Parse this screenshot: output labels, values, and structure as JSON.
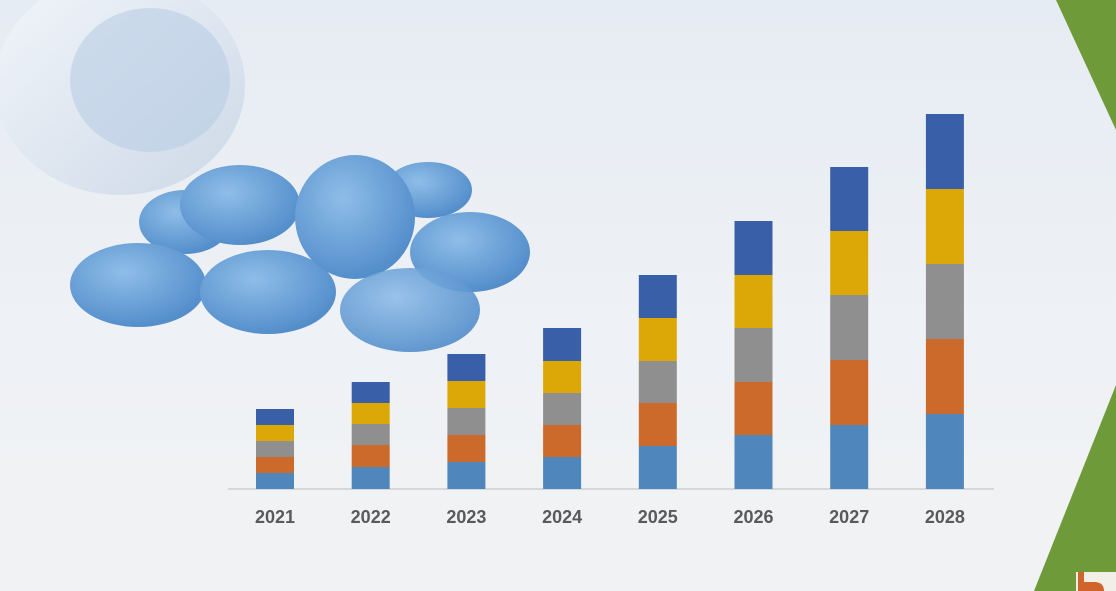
{
  "chart_data": {
    "type": "bar",
    "stacked": true,
    "categories": [
      "2021",
      "2022",
      "2023",
      "2024",
      "2025",
      "2026",
      "2027",
      "2028"
    ],
    "series": [
      {
        "color": "#4f87bd",
        "values": [
          16,
          22,
          27,
          32,
          43,
          54,
          64,
          75
        ]
      },
      {
        "color": "#cc6a2b",
        "values": [
          16,
          22,
          27,
          32,
          43,
          53,
          65,
          75
        ]
      },
      {
        "color": "#8f8f8f",
        "values": [
          16,
          21,
          27,
          32,
          42,
          54,
          65,
          75
        ]
      },
      {
        "color": "#dba807",
        "values": [
          16,
          21,
          27,
          32,
          43,
          53,
          64,
          75
        ]
      },
      {
        "color": "#3a5fa9",
        "values": [
          16,
          21,
          27,
          33,
          43,
          54,
          64,
          75
        ]
      }
    ],
    "grid": false,
    "legend": "none",
    "ylim": [
      0,
      375
    ]
  },
  "decor": {
    "pills_icon": "blue-pills-and-bottle-image",
    "accent_color": "#6f9a3a",
    "logo_accent_color": "#d0652c"
  }
}
